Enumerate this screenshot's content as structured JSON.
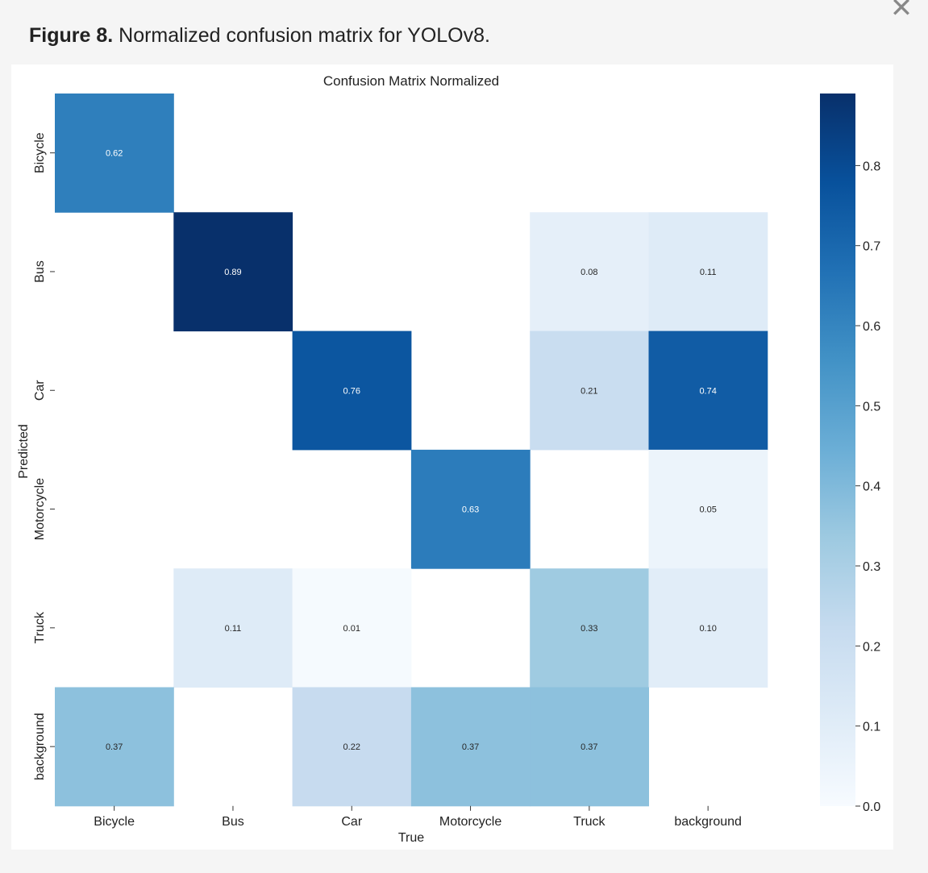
{
  "window": {
    "close_icon": "close-icon"
  },
  "caption": {
    "label": "Figure 8.",
    "text": "Normalized confusion matrix for YOLOv8."
  },
  "chart_data": {
    "type": "heatmap",
    "title": "Confusion Matrix Normalized",
    "xlabel": "True",
    "ylabel": "Predicted",
    "x_categories": [
      "Bicycle",
      "Bus",
      "Car",
      "Motorcycle",
      "Truck",
      "background"
    ],
    "y_categories": [
      "Bicycle",
      "Bus",
      "Car",
      "Motorcycle",
      "Truck",
      "background"
    ],
    "values": [
      [
        0.62,
        null,
        null,
        null,
        null,
        null
      ],
      [
        null,
        0.89,
        null,
        null,
        0.08,
        0.11
      ],
      [
        null,
        null,
        0.76,
        null,
        0.21,
        0.74
      ],
      [
        null,
        null,
        null,
        0.63,
        null,
        0.05
      ],
      [
        null,
        0.11,
        0.01,
        null,
        0.33,
        0.1
      ],
      [
        0.37,
        null,
        0.22,
        0.37,
        0.37,
        null
      ]
    ],
    "value_labels": [
      [
        "0.62",
        "",
        "",
        "",
        "",
        ""
      ],
      [
        "",
        "0.89",
        "",
        "",
        "0.08",
        "0.11"
      ],
      [
        "",
        "",
        "0.76",
        "",
        "0.21",
        "0.74"
      ],
      [
        "",
        "",
        "",
        "0.63",
        "",
        "0.05"
      ],
      [
        "",
        "0.11",
        "0.01",
        "",
        "0.33",
        "0.10"
      ],
      [
        "0.37",
        "",
        "0.22",
        "0.37",
        "0.37",
        ""
      ]
    ],
    "colorbar": {
      "range": [
        0,
        0.89
      ],
      "ticks": [
        0.0,
        0.1,
        0.2,
        0.3,
        0.4,
        0.5,
        0.6,
        0.7,
        0.8
      ],
      "tick_labels": [
        "0.0",
        "0.1",
        "0.2",
        "0.3",
        "0.4",
        "0.5",
        "0.6",
        "0.7",
        "0.8"
      ],
      "colormap": "Blues"
    },
    "grid": false
  }
}
